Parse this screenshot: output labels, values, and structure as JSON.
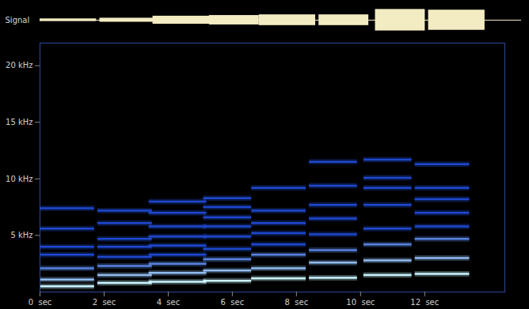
{
  "chart_data": {
    "type": "spectrogram",
    "xlim": [
      0,
      14.5
    ],
    "xticks": [
      {
        "value": 0,
        "label": "0  sec"
      },
      {
        "value": 2,
        "label": "2  sec"
      },
      {
        "value": 4,
        "label": "4  sec"
      },
      {
        "value": 6,
        "label": "6  sec"
      },
      {
        "value": 8,
        "label": "8  sec"
      },
      {
        "value": 10,
        "label": "10  sec"
      },
      {
        "value": 12,
        "label": "12  sec"
      }
    ],
    "ylim": [
      0,
      22
    ],
    "yticks": [
      {
        "value": 5,
        "label": "5 kHz"
      },
      {
        "value": 10,
        "label": "10 kHz"
      },
      {
        "value": 15,
        "label": "15 kHz"
      },
      {
        "value": 20,
        "label": "20 kHz"
      }
    ],
    "signal": {
      "label": "Signal",
      "color": "#f3ecc2",
      "ylim": [
        -1,
        1
      ],
      "amplitude": [
        0.1,
        0.15,
        0.3,
        0.35,
        0.4,
        0.4,
        0.8,
        0.75
      ]
    },
    "notes": [
      {
        "start": 0.0,
        "end": 1.7,
        "harmonics": [
          0.5,
          1.1,
          2.1,
          3.3,
          4.0,
          5.6,
          7.4
        ]
      },
      {
        "start": 1.8,
        "end": 3.5,
        "harmonics": [
          0.8,
          1.5,
          2.3,
          3.1,
          4.0,
          4.7,
          6.1,
          7.2
        ]
      },
      {
        "start": 3.4,
        "end": 5.2,
        "harmonics": [
          0.9,
          1.7,
          2.5,
          3.3,
          4.1,
          4.9,
          5.8,
          7.0,
          8.0
        ]
      },
      {
        "start": 5.1,
        "end": 6.6,
        "harmonics": [
          1.0,
          1.9,
          2.9,
          3.8,
          4.9,
          5.8,
          6.6,
          7.5,
          8.3
        ]
      },
      {
        "start": 6.6,
        "end": 8.3,
        "harmonics": [
          1.2,
          2.1,
          3.3,
          4.2,
          5.2,
          6.1,
          7.2,
          9.2
        ]
      },
      {
        "start": 8.4,
        "end": 9.9,
        "harmonics": [
          1.25,
          2.6,
          3.7,
          5.1,
          6.5,
          7.7,
          9.4,
          11.5
        ]
      },
      {
        "start": 10.1,
        "end": 11.6,
        "harmonics": [
          1.5,
          2.8,
          4.2,
          5.6,
          7.7,
          9.2,
          10.1,
          11.7
        ]
      },
      {
        "start": 11.7,
        "end": 13.4,
        "harmonics": [
          1.6,
          3.0,
          4.7,
          5.8,
          7.0,
          8.2,
          9.2,
          11.3
        ]
      }
    ]
  }
}
